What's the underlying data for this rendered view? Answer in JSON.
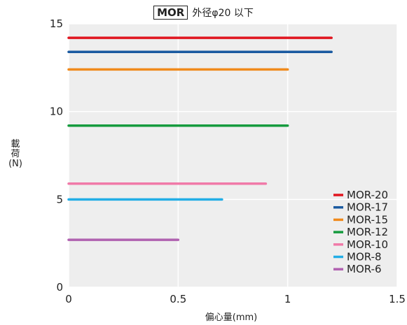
{
  "chart_data": {
    "type": "line",
    "title_boxed": "MOR",
    "title": "外径φ20 以下",
    "xlabel": "偏心量(mm)",
    "ylabel": "載\n荷\n(N)",
    "xlim": [
      0,
      1.5
    ],
    "ylim": [
      0,
      15
    ],
    "xticks": [
      "0",
      "0.5",
      "1",
      "1.5"
    ],
    "yticks": [
      "0",
      "5",
      "10",
      "15"
    ],
    "grid": true,
    "legend_position": "bottom-right",
    "series": [
      {
        "name": "MOR-20",
        "color": "#e0151f",
        "x": [
          0,
          1.2
        ],
        "y": [
          14.2,
          14.2
        ]
      },
      {
        "name": "MOR-17",
        "color": "#1a5aa0",
        "x": [
          0,
          1.2
        ],
        "y": [
          13.4,
          13.4
        ]
      },
      {
        "name": "MOR-15",
        "color": "#f08a1c",
        "x": [
          0,
          1.0
        ],
        "y": [
          12.4,
          12.4
        ]
      },
      {
        "name": "MOR-12",
        "color": "#169b3e",
        "x": [
          0,
          1.0
        ],
        "y": [
          9.2,
          9.2
        ]
      },
      {
        "name": "MOR-10",
        "color": "#f07aa8",
        "x": [
          0,
          0.9
        ],
        "y": [
          5.9,
          5.9
        ]
      },
      {
        "name": "MOR-8",
        "color": "#23aee6",
        "x": [
          0,
          0.7
        ],
        "y": [
          5.0,
          5.0
        ]
      },
      {
        "name": "MOR-6",
        "color": "#b061b0",
        "x": [
          0,
          0.5
        ],
        "y": [
          2.7,
          2.7
        ]
      }
    ]
  }
}
